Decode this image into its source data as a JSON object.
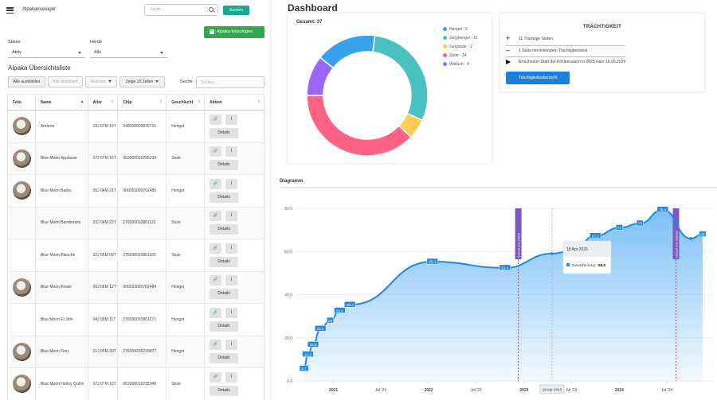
{
  "header": {
    "app_title": "Alpakamanager",
    "search_placeholder": "Suche...",
    "search_button": "Suchen"
  },
  "actions": {
    "add_label": "Alpaka hinzufügen"
  },
  "filters": {
    "status_label": "Status",
    "status_value": "Aktiv",
    "herde_label": "Herde",
    "herde_value": "Alle"
  },
  "list": {
    "title": "Alpaka Übersichtsliste",
    "buttons": {
      "select_all": "Alle auswählen",
      "deselect_all": "Alle abwählen",
      "actions": "Aktionen",
      "page_size": "Zeige 10 Zeilen"
    },
    "search_label": "Suche:",
    "search_placeholder": "Suchen...",
    "columns": [
      "Foto",
      "Name",
      "Alter",
      "Chip",
      "Geschlecht",
      "Aktion"
    ],
    "action_labels": {
      "link_icon": "link-icon",
      "info_icon": "info-icon",
      "details": "Details"
    },
    "rows": [
      {
        "name": "Ambros",
        "age": "03J 07M 19T",
        "chip": "948000000039715",
        "sex": "Hengst",
        "photo": true
      },
      {
        "name": "Blue Moon Applause",
        "age": "07J 07M 16T",
        "chip": "953000010295230",
        "sex": "Stute",
        "photo": true
      },
      {
        "name": "Blue Moon Bailys",
        "age": "00J 04M 21T",
        "chip": "900263000762485",
        "sex": "Hengst",
        "photo": true
      },
      {
        "name": "Blue Moon Bamboozle",
        "age": "03J 04M 23T",
        "chip": "276090010861122",
        "sex": "Stute",
        "photo": false
      },
      {
        "name": "Blue Moon Blanche",
        "age": "02J 05M 09T",
        "chip": "276090010861160",
        "sex": "Stute",
        "photo": false
      },
      {
        "name": "Blue Moon Bowie",
        "age": "00J 08M 12T",
        "chip": "900263000762484",
        "sex": "Hengst",
        "photo": true
      },
      {
        "name": "Blue Moon El Jefe",
        "age": "04J 00M 11T",
        "chip": "276090010861171",
        "sex": "Hengst",
        "photo": false
      },
      {
        "name": "Blue Moon Finn",
        "age": "01J 05M 20T",
        "chip": "276099200229877",
        "sex": "Hengst",
        "photo": true
      },
      {
        "name": "Blue Moon Harley Quinn",
        "age": "07J 07M 10T",
        "chip": "953000010295348",
        "sex": "Stute",
        "photo": true
      }
    ]
  },
  "dashboard": {
    "title": "Dashboard",
    "total": "Gesamt: 37",
    "legend": [
      {
        "label": "Hengst - 6",
        "value": 6,
        "color": "#36a2eb"
      },
      {
        "label": "Junghengst - 11",
        "value": 11,
        "color": "#4bc0c0"
      },
      {
        "label": "Jungstute - 2",
        "value": 2,
        "color": "#ffcd56"
      },
      {
        "label": "Stute - 14",
        "value": 14,
        "color": "#ff6384"
      },
      {
        "label": "Wallach - 4",
        "value": 4,
        "color": "#9966ff"
      }
    ],
    "donut_order": [
      4,
      0,
      1,
      2,
      3
    ]
  },
  "traechtigkeit": {
    "title": "TRÄCHTIGKEIT",
    "lines": [
      {
        "icon": "plus-icon",
        "glyph": "+",
        "text": "11 Trächtige Stuten"
      },
      {
        "icon": "minus-icon",
        "glyph": "–",
        "text": "1 Stute mit fehlendem Trächtigkeitstest"
      },
      {
        "icon": "play-icon",
        "glyph": "▶",
        "text": "Errechneter Start der Fohlensaison in 2025 wäre 16.05.2025"
      }
    ],
    "button": "Trächtigkeitsübersicht"
  },
  "diagram": {
    "label": "Diagramm",
    "tooltip_title": "18 Apr 2023",
    "tooltip_series": "Gewicht in kg:",
    "tooltip_value": "59,0",
    "x_badge": "18 Apr 2023",
    "annotations": [
      "Geburt von Ulrich",
      "Geburt von Selinus"
    ]
  },
  "chart_data": {
    "type": "area",
    "series": [
      {
        "name": "Gewicht in kg",
        "points": [
          [
            "2020-09-10",
            5.7
          ],
          [
            "2020-09-25",
            12.3
          ],
          [
            "2020-10-15",
            16.8
          ],
          [
            "2020-11-12",
            24.2
          ],
          [
            "2020-12-20",
            28.0
          ],
          [
            "2021-01-25",
            32.6
          ],
          [
            "2021-03-05",
            35.3
          ],
          [
            "2022-01-15",
            55.3
          ],
          [
            "2022-10-20",
            52.4
          ],
          [
            "2023-04-18",
            59.0
          ],
          [
            "2023-07-05",
            60.3
          ],
          [
            "2023-10-01",
            67.2
          ],
          [
            "2024-01-01",
            71.0
          ],
          [
            "2024-03-20",
            73.0
          ],
          [
            "2024-06-15",
            79.4
          ],
          [
            "2024-10-01",
            66.0
          ],
          [
            "2024-11-15",
            68.0
          ]
        ],
        "labels": [
          "5.7",
          "12.3",
          "16.8",
          "24.2",
          "28",
          "32.6",
          "35.3",
          "55.3",
          "52.4",
          "",
          "60.3",
          "67.2",
          "71",
          "73",
          "79.4",
          "",
          "68"
        ]
      }
    ],
    "x_ticks": [
      "2021",
      "Jul '21",
      "2022",
      "Jul '22",
      "2023",
      "Jul '23",
      "2024",
      "Jul '24"
    ],
    "x_tick_dates": [
      "2021-01-01",
      "2021-07-01",
      "2022-01-01",
      "2022-07-01",
      "2023-01-01",
      "2023-07-01",
      "2024-01-01",
      "2024-07-01"
    ],
    "y_ticks": [
      "0.0",
      "20.0",
      "40.0",
      "60.0",
      "80.0"
    ],
    "ylim": [
      0,
      80
    ],
    "xlim": [
      "2020-08-15",
      "2024-12-31"
    ],
    "annotation_dates": [
      "2022-12-10",
      "2024-08-05"
    ],
    "hover_date": "2023-04-18",
    "colors": {
      "line": "#1e88e5",
      "fill_top": "#64b5f6",
      "label_bg": "#1e88e5",
      "annotation": "#7e57c2"
    }
  }
}
